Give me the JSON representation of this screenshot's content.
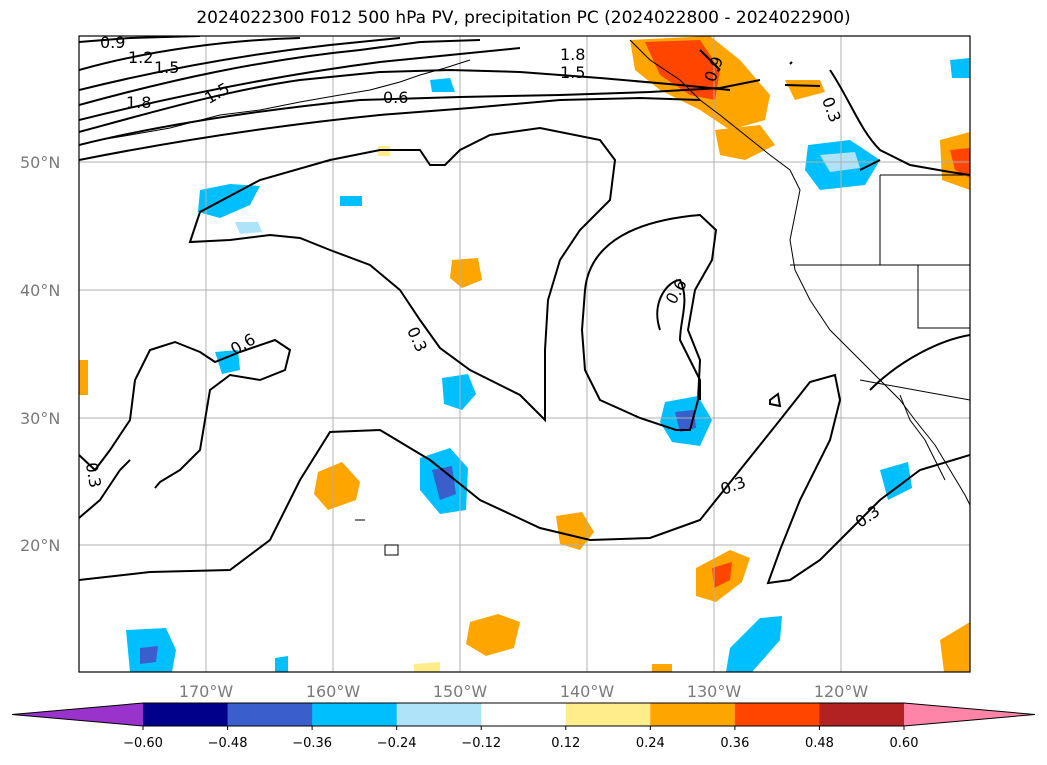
{
  "title": "2024022300 F012 500 hPa PV, precipitation PC (2024022800 - 2024022900)",
  "map": {
    "lat_labels": [
      "50°N",
      "40°N",
      "30°N",
      "20°N"
    ],
    "lon_labels": [
      "170°W",
      "160°W",
      "150°W",
      "140°W",
      "130°W",
      "120°W"
    ],
    "contour_labels": [
      "0.9",
      "1.2",
      "1.5",
      "1.5",
      "1.8",
      "1.8",
      "1.5",
      "0.6",
      "0.9",
      "0.3",
      "0.6",
      "0.3",
      "0.6",
      "0.3",
      "0.3",
      "0.3"
    ]
  },
  "colorbar": {
    "tick_labels": [
      "−0.60",
      "−0.48",
      "−0.36",
      "−0.24",
      "−0.12",
      "0.12",
      "0.24",
      "0.36",
      "0.48",
      "0.60"
    ],
    "colors": [
      "#9933cc",
      "#00008b",
      "#3a5fcd",
      "#00bfff",
      "#aee3fa",
      "#ffffff",
      "#ffec8b",
      "#ffa500",
      "#ff4500",
      "#b22222",
      "#ff85a8"
    ]
  }
}
